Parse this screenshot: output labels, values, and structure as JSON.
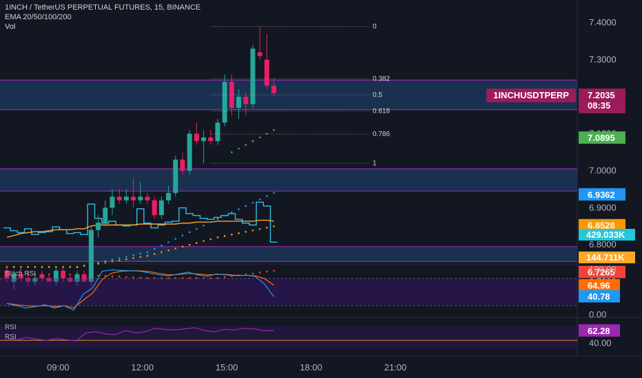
{
  "header": {
    "symbol_line": "1INCH / TetherUS PERPETUAL FUTURES, 15, BINANCE",
    "indicator_line": "EMA 20/50/100/200",
    "volume_line": "Vol"
  },
  "panes": {
    "stoch_label": "Stoch RSI",
    "rsi_label_1": "RSI",
    "rsi_label_2": "RSI"
  },
  "colors": {
    "background": "#131722",
    "bull": "#26a69a",
    "bear": "#e91e63",
    "zone_fill": "#1e3a5f",
    "zone_border": "#9c27b0",
    "ema20": "#4caf50",
    "ema50": "#2196f3",
    "ema100": "#ff9800",
    "ema200": "#f44336",
    "vol_line": "#2ec1e8",
    "vol_ma": "#ffa726"
  },
  "chart_data": {
    "type": "candlestick",
    "x_ticks": [
      "09:00",
      "12:00",
      "15:00",
      "18:00",
      "21:00"
    ],
    "price_ticks": [
      "7.4000",
      "7.3000",
      "7.2000",
      "7.1000",
      "7.0000",
      "6.9000",
      "6.8000",
      "6.7000"
    ],
    "price_range": [
      6.66,
      7.45
    ],
    "candles": [
      {
        "o": 6.73,
        "h": 6.74,
        "l": 6.7,
        "c": 6.71
      },
      {
        "o": 6.7,
        "h": 6.73,
        "l": 6.68,
        "c": 6.72
      },
      {
        "o": 6.72,
        "h": 6.74,
        "l": 6.7,
        "c": 6.71
      },
      {
        "o": 6.71,
        "h": 6.73,
        "l": 6.69,
        "c": 6.7
      },
      {
        "o": 6.7,
        "h": 6.72,
        "l": 6.69,
        "c": 6.71
      },
      {
        "o": 6.72,
        "h": 6.73,
        "l": 6.7,
        "c": 6.71
      },
      {
        "o": 6.71,
        "h": 6.72,
        "l": 6.7,
        "c": 6.7
      },
      {
        "o": 6.7,
        "h": 6.74,
        "l": 6.69,
        "c": 6.73
      },
      {
        "o": 6.73,
        "h": 6.74,
        "l": 6.7,
        "c": 6.71
      },
      {
        "o": 6.71,
        "h": 6.72,
        "l": 6.7,
        "c": 6.7
      },
      {
        "o": 6.7,
        "h": 6.73,
        "l": 6.69,
        "c": 6.72
      },
      {
        "o": 6.72,
        "h": 6.73,
        "l": 6.7,
        "c": 6.7
      },
      {
        "o": 6.7,
        "h": 6.85,
        "l": 6.69,
        "c": 6.84
      },
      {
        "o": 6.84,
        "h": 6.88,
        "l": 6.82,
        "c": 6.86
      },
      {
        "o": 6.86,
        "h": 6.92,
        "l": 6.85,
        "c": 6.9
      },
      {
        "o": 6.9,
        "h": 6.95,
        "l": 6.88,
        "c": 6.93
      },
      {
        "o": 6.93,
        "h": 6.95,
        "l": 6.91,
        "c": 6.92
      },
      {
        "o": 6.92,
        "h": 6.95,
        "l": 6.91,
        "c": 6.93
      },
      {
        "o": 6.93,
        "h": 6.98,
        "l": 6.9,
        "c": 6.92
      },
      {
        "o": 6.92,
        "h": 6.97,
        "l": 6.91,
        "c": 6.93
      },
      {
        "o": 6.93,
        "h": 6.94,
        "l": 6.91,
        "c": 6.92
      },
      {
        "o": 6.92,
        "h": 6.93,
        "l": 6.87,
        "c": 6.88
      },
      {
        "o": 6.88,
        "h": 6.93,
        "l": 6.87,
        "c": 6.92
      },
      {
        "o": 6.92,
        "h": 6.96,
        "l": 6.91,
        "c": 6.94
      },
      {
        "o": 6.94,
        "h": 7.04,
        "l": 6.93,
        "c": 7.03
      },
      {
        "o": 7.03,
        "h": 7.05,
        "l": 6.99,
        "c": 7.0
      },
      {
        "o": 7.0,
        "h": 7.11,
        "l": 6.99,
        "c": 7.1
      },
      {
        "o": 7.1,
        "h": 7.13,
        "l": 7.07,
        "c": 7.08
      },
      {
        "o": 7.08,
        "h": 7.11,
        "l": 7.02,
        "c": 7.09
      },
      {
        "o": 7.09,
        "h": 7.11,
        "l": 7.07,
        "c": 7.08
      },
      {
        "o": 7.08,
        "h": 7.14,
        "l": 7.07,
        "c": 7.13
      },
      {
        "o": 7.13,
        "h": 7.26,
        "l": 7.12,
        "c": 7.24
      },
      {
        "o": 7.24,
        "h": 7.26,
        "l": 7.15,
        "c": 7.17
      },
      {
        "o": 7.17,
        "h": 7.22,
        "l": 7.14,
        "c": 7.2
      },
      {
        "o": 7.2,
        "h": 7.21,
        "l": 7.15,
        "c": 7.18
      },
      {
        "o": 7.18,
        "h": 7.34,
        "l": 7.17,
        "c": 7.33
      },
      {
        "o": 7.32,
        "h": 7.39,
        "l": 7.3,
        "c": 7.31
      },
      {
        "o": 7.3,
        "h": 7.37,
        "l": 7.22,
        "c": 7.23
      },
      {
        "o": 7.23,
        "h": 7.25,
        "l": 7.2,
        "c": 7.21
      }
    ],
    "last_candle_index": 38,
    "time_axis": {
      "tick_candle_index": [
        2,
        14,
        26,
        38,
        50
      ]
    },
    "zones": [
      {
        "top": 7.245,
        "bottom": 7.165
      },
      {
        "top": 7.005,
        "bottom": 6.945
      },
      {
        "top": 6.795,
        "bottom": 6.755
      }
    ],
    "fib": {
      "levels": [
        "0",
        "0.382",
        "0.5",
        "0.618",
        "0.786",
        "1"
      ],
      "price_top": 7.39,
      "price_bottom": 7.02
    },
    "ema_dots": {
      "ema20": [
        [
          32,
          7.05
        ],
        [
          35,
          7.08
        ],
        [
          38,
          7.11
        ]
      ],
      "ema50": [
        [
          0,
          6.74
        ],
        [
          10,
          6.74
        ],
        [
          20,
          6.78
        ],
        [
          30,
          6.87
        ],
        [
          38,
          6.94
        ]
      ],
      "ema100": [
        [
          0,
          6.74
        ],
        [
          10,
          6.74
        ],
        [
          20,
          6.77
        ],
        [
          30,
          6.82
        ],
        [
          38,
          6.85
        ]
      ],
      "ema200": [
        [
          0,
          6.72
        ],
        [
          10,
          6.72
        ],
        [
          20,
          6.71
        ],
        [
          30,
          6.71
        ],
        [
          38,
          6.73
        ]
      ]
    },
    "price_tags": [
      {
        "label": "1INCHUSDTPERP",
        "value": "7.2035",
        "sub": "08:35",
        "price": 7.2035,
        "color": "#9c1b5b"
      },
      {
        "value": "7.0895",
        "price": 7.0895,
        "color": "#4caf50"
      },
      {
        "value": "6.9362",
        "price": 6.9362,
        "color": "#2196f3"
      },
      {
        "value": "6.8528",
        "price": 6.8528,
        "color": "#ff9800"
      },
      {
        "value": "6.7265",
        "price": 6.7265,
        "color": "#f44336"
      }
    ],
    "volume": {
      "values": [
        35,
        32,
        30,
        34,
        28,
        30,
        31,
        36,
        33,
        29,
        30,
        28,
        60,
        45,
        40,
        42,
        38,
        37,
        38,
        55,
        40,
        35,
        38,
        41,
        42,
        56,
        50,
        48,
        45,
        44,
        46,
        48,
        50,
        44,
        40,
        38,
        62,
        58,
        20
      ],
      "ma": [
        25,
        27,
        29,
        30,
        31,
        31,
        32,
        33,
        33,
        33,
        34,
        34,
        37,
        38,
        38,
        38,
        38,
        38,
        38,
        39,
        39,
        39,
        39,
        39,
        39,
        40,
        40,
        41,
        41,
        41,
        42,
        42,
        42,
        42,
        42,
        42,
        43,
        43,
        42
      ],
      "tag_vol": {
        "value": "429.033K",
        "color": "#26c6da"
      },
      "tag_ma": {
        "value": "144.711K",
        "color": "#ffa726"
      }
    },
    "stoch_rsi": {
      "ticks": [
        "100.00",
        "0.00"
      ],
      "k": [
        25,
        20,
        15,
        18,
        22,
        15,
        20,
        10,
        45,
        60,
        96,
        99,
        98,
        97,
        96,
        92,
        88,
        86,
        90,
        94,
        88,
        85,
        90,
        88,
        86,
        87,
        85,
        68,
        40
      ],
      "d": [
        25,
        22,
        20,
        19,
        20,
        18,
        20,
        15,
        32,
        48,
        78,
        92,
        96,
        97,
        97,
        95,
        91,
        88,
        89,
        91,
        90,
        88,
        89,
        89,
        87,
        87,
        86,
        80,
        65
      ],
      "k_label": {
        "value": "40.78",
        "color": "#2196f3"
      },
      "d_label": {
        "value": "64.96",
        "color": "#ff6d00"
      }
    },
    "rsi": {
      "ticks": [
        "40.00"
      ],
      "values": [
        48,
        46,
        50,
        47,
        45,
        48,
        46,
        44,
        58,
        60,
        56,
        55,
        62,
        58,
        60,
        66,
        64,
        63,
        65,
        67,
        62,
        60,
        64,
        63,
        66,
        65,
        62,
        62
      ],
      "label": {
        "value": "62.28",
        "color": "#9c27b0"
      }
    }
  }
}
